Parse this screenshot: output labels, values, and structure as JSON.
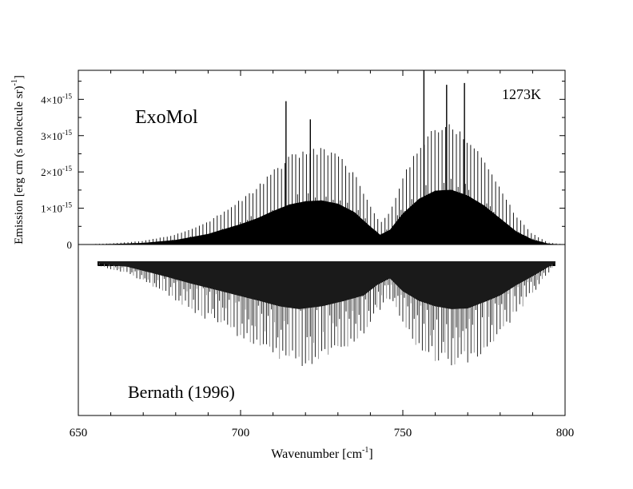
{
  "chart_data": [
    {
      "type": "line",
      "panel": "top",
      "title_in_plot": "ExoMol",
      "annotation": "1273K",
      "xlabel": "Wavenumber [cm",
      "xlabel_sup": "-1",
      "xlabel_end": "]",
      "ylabel": "Emission [erg cm (s molecule sr)",
      "ylabel_sup": "-1",
      "ylabel_end": "]",
      "xlim": [
        650,
        800
      ],
      "ylim": [
        0,
        4.8e-15
      ],
      "x_ticks": [
        650,
        700,
        750,
        800
      ],
      "y_ticks": [
        {
          "value": 0,
          "mant": "0",
          "exp": ""
        },
        {
          "value": 1e-15,
          "mant": "1×10",
          "exp": "-15"
        },
        {
          "value": 2e-15,
          "mant": "2×10",
          "exp": "-15"
        },
        {
          "value": 3e-15,
          "mant": "3×10",
          "exp": "-15"
        },
        {
          "value": 4e-15,
          "mant": "4×10",
          "exp": "-15"
        }
      ],
      "envelope": {
        "x": [
          650,
          660,
          670,
          680,
          690,
          700,
          705,
          710,
          715,
          720,
          725,
          730,
          735,
          740,
          743,
          746,
          750,
          755,
          760,
          765,
          770,
          775,
          780,
          785,
          790,
          795,
          800
        ],
        "y": [
          0,
          3e-17,
          1e-16,
          2.8e-16,
          6.5e-16,
          1.25e-15,
          1.6e-15,
          2.05e-15,
          2.45e-15,
          2.65e-15,
          2.7e-15,
          2.5e-15,
          2e-15,
          1.1e-15,
          6e-16,
          9e-16,
          1.9e-15,
          2.8e-15,
          3.3e-15,
          3.35e-15,
          3e-15,
          2.4e-15,
          1.6e-15,
          8e-16,
          3e-16,
          5e-17,
          0
        ]
      },
      "strong_lines": [
        {
          "x": 714.0,
          "y": 3.95e-15
        },
        {
          "x": 721.5,
          "y": 3.45e-15
        },
        {
          "x": 756.5,
          "y": 4.8e-15
        },
        {
          "x": 763.5,
          "y": 4.4e-15
        },
        {
          "x": 769.0,
          "y": 4.45e-15
        }
      ]
    },
    {
      "type": "line",
      "panel": "bottom",
      "title_in_plot": "Bernath (1996)",
      "xlim": [
        650,
        800
      ],
      "orientation": "inverted (absorption-style, no y scale printed)",
      "x_range_observed": [
        656,
        797
      ],
      "depth_envelope": {
        "x": [
          656,
          665,
          675,
          685,
          695,
          705,
          712,
          718,
          725,
          732,
          738,
          742,
          746,
          750,
          755,
          760,
          765,
          770,
          775,
          780,
          785,
          790,
          795,
          797
        ],
        "depth": [
          0.03,
          0.08,
          0.2,
          0.33,
          0.45,
          0.57,
          0.66,
          0.7,
          0.66,
          0.58,
          0.5,
          0.35,
          0.25,
          0.44,
          0.58,
          0.66,
          0.7,
          0.69,
          0.6,
          0.5,
          0.35,
          0.22,
          0.08,
          0.02
        ]
      }
    }
  ]
}
